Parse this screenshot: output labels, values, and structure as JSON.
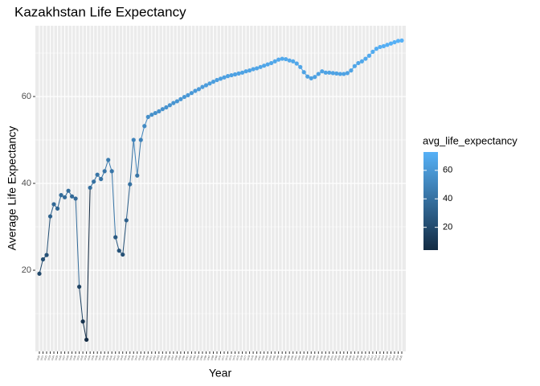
{
  "chart_data": {
    "type": "line",
    "title": "Kazakhstan Life Expectancy",
    "x_label": "Year",
    "y_label": "Average Life Expectancy",
    "categories": [
      "1920",
      "1921",
      "1922",
      "1923",
      "1924",
      "1925",
      "1926",
      "1927",
      "1928",
      "1929",
      "1930",
      "1931",
      "1932",
      "1933",
      "1934",
      "1935",
      "1936",
      "1937",
      "1938",
      "1939",
      "1940",
      "1941",
      "1942",
      "1943",
      "1944",
      "1945",
      "1946",
      "1947",
      "1948",
      "1949",
      "1950",
      "1951",
      "1952",
      "1953",
      "1954",
      "1955",
      "1956",
      "1957",
      "1958",
      "1959",
      "1960",
      "1961",
      "1962",
      "1963",
      "1964",
      "1965",
      "1966",
      "1967",
      "1968",
      "1969",
      "1970",
      "1971",
      "1972",
      "1973",
      "1974",
      "1975",
      "1976",
      "1977",
      "1978",
      "1979",
      "1980",
      "1981",
      "1982",
      "1983",
      "1984",
      "1985",
      "1986",
      "1987",
      "1988",
      "1989",
      "1990",
      "1991",
      "1992",
      "1993",
      "1994",
      "1995",
      "1996",
      "1997",
      "1998",
      "1999",
      "2000",
      "2001",
      "2002",
      "2003",
      "2004",
      "2005",
      "2006",
      "2007",
      "2008",
      "2009",
      "2010",
      "2011",
      "2012",
      "2013",
      "2014",
      "2015",
      "2016",
      "2017",
      "2018",
      "2019",
      "2020"
    ],
    "series": [
      {
        "name": "avg_life_expectancy",
        "values": [
          19.2,
          22.5,
          23.5,
          32.4,
          35.2,
          34.2,
          37.3,
          36.8,
          38.3,
          37.0,
          36.5,
          16.2,
          8.2,
          4.0,
          39.0,
          40.4,
          42.0,
          41.0,
          42.8,
          45.4,
          42.8,
          27.6,
          24.5,
          23.6,
          31.5,
          39.8,
          50.0,
          41.8,
          50.0,
          53.2,
          55.3,
          55.8,
          56.2,
          56.6,
          57.1,
          57.5,
          58.0,
          58.5,
          58.9,
          59.4,
          59.9,
          60.3,
          60.8,
          61.3,
          61.7,
          62.2,
          62.6,
          63.0,
          63.4,
          63.8,
          64.1,
          64.4,
          64.7,
          64.9,
          65.1,
          65.3,
          65.5,
          65.8,
          66.0,
          66.3,
          66.5,
          66.8,
          67.1,
          67.4,
          67.7,
          68.1,
          68.5,
          68.7,
          68.6,
          68.3,
          68.1,
          67.6,
          66.8,
          65.6,
          64.6,
          64.2,
          64.5,
          65.2,
          65.8,
          65.5,
          65.5,
          65.4,
          65.3,
          65.2,
          65.2,
          65.4,
          66.0,
          67.0,
          67.7,
          68.1,
          68.7,
          69.4,
          70.3,
          71.0,
          71.4,
          71.6,
          71.9,
          72.2,
          72.5,
          72.8,
          72.9
        ]
      }
    ],
    "ylim": [
      1.3,
      76.3
    ],
    "yticks": [
      20,
      40,
      60
    ],
    "grid": true,
    "color_scale": {
      "title": "avg_life_expectancy",
      "low": "#132B43",
      "high": "#56B1F7",
      "ticks": [
        20,
        40,
        60
      ]
    },
    "line_color": "#1f4e79"
  }
}
